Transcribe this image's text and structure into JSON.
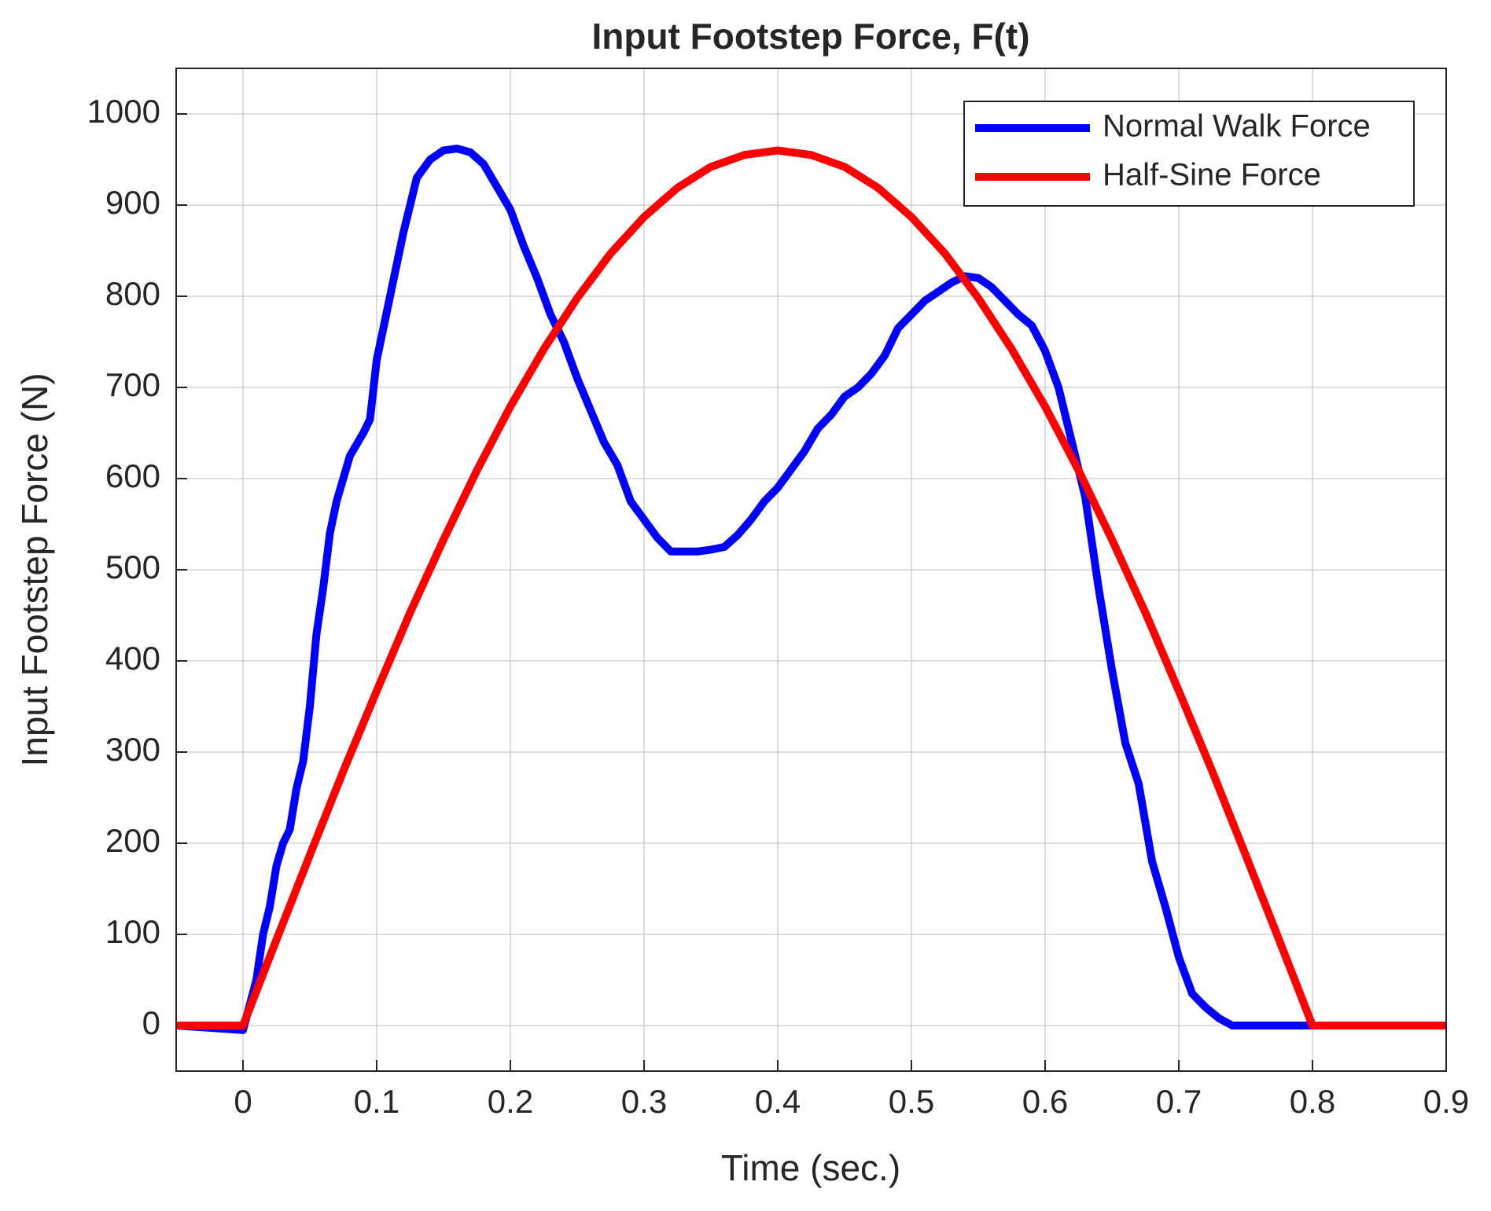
{
  "chart_data": {
    "type": "line",
    "title": "Input Footstep Force, F(t)",
    "x_label": "Time (sec.)",
    "y_label": "Input Footstep Force (N)",
    "xlim": [
      -0.05,
      0.9
    ],
    "ylim": [
      -50,
      1050
    ],
    "xticks": [
      0,
      0.1,
      0.2,
      0.3,
      0.4,
      0.5,
      0.6,
      0.7,
      0.8,
      0.9
    ],
    "yticks": [
      0,
      100,
      200,
      300,
      400,
      500,
      600,
      700,
      800,
      900,
      1000
    ],
    "grid": true,
    "legend": "upper right",
    "series": [
      {
        "name": "Normal Walk Force",
        "color": "#0000ff",
        "x": [
          -0.05,
          0,
          0.01,
          0.015,
          0.02,
          0.025,
          0.03,
          0.035,
          0.04,
          0.045,
          0.05,
          0.055,
          0.06,
          0.065,
          0.07,
          0.08,
          0.09,
          0.095,
          0.1,
          0.11,
          0.12,
          0.13,
          0.14,
          0.15,
          0.16,
          0.17,
          0.18,
          0.19,
          0.2,
          0.21,
          0.22,
          0.23,
          0.24,
          0.25,
          0.26,
          0.27,
          0.28,
          0.29,
          0.3,
          0.31,
          0.32,
          0.33,
          0.34,
          0.35,
          0.36,
          0.37,
          0.38,
          0.39,
          0.4,
          0.41,
          0.42,
          0.43,
          0.44,
          0.45,
          0.46,
          0.47,
          0.48,
          0.49,
          0.5,
          0.51,
          0.52,
          0.53,
          0.54,
          0.55,
          0.56,
          0.57,
          0.58,
          0.59,
          0.6,
          0.61,
          0.62,
          0.63,
          0.64,
          0.65,
          0.66,
          0.67,
          0.68,
          0.69,
          0.7,
          0.71,
          0.72,
          0.73,
          0.74,
          0.8,
          0.9
        ],
        "values": [
          0,
          -5,
          50,
          100,
          130,
          175,
          200,
          215,
          260,
          290,
          350,
          430,
          480,
          540,
          575,
          625,
          650,
          665,
          730,
          800,
          870,
          930,
          950,
          960,
          962,
          958,
          945,
          920,
          895,
          855,
          820,
          780,
          750,
          710,
          675,
          640,
          615,
          575,
          555,
          535,
          520,
          520,
          520,
          522,
          525,
          538,
          555,
          575,
          590,
          610,
          630,
          655,
          670,
          690,
          700,
          715,
          735,
          765,
          780,
          795,
          805,
          815,
          822,
          820,
          810,
          795,
          780,
          768,
          740,
          700,
          640,
          580,
          480,
          390,
          310,
          265,
          180,
          130,
          75,
          35,
          20,
          8,
          0,
          0,
          0
        ]
      },
      {
        "name": "Half-Sine Force",
        "color": "#ff0000",
        "x": [
          -0.05,
          0,
          0.025,
          0.05,
          0.075,
          0.1,
          0.125,
          0.15,
          0.175,
          0.2,
          0.225,
          0.25,
          0.275,
          0.3,
          0.325,
          0.35,
          0.375,
          0.4,
          0.425,
          0.45,
          0.475,
          0.5,
          0.525,
          0.55,
          0.575,
          0.6,
          0.625,
          0.65,
          0.675,
          0.7,
          0.725,
          0.75,
          0.775,
          0.8,
          0.9
        ],
        "values": [
          0,
          0,
          94,
          187,
          279,
          367,
          453,
          533,
          609,
          679,
          742,
          798,
          847,
          887,
          919,
          942,
          955,
          960,
          955,
          942,
          919,
          887,
          847,
          798,
          742,
          679,
          609,
          533,
          453,
          367,
          279,
          187,
          94,
          0,
          0
        ]
      }
    ]
  }
}
